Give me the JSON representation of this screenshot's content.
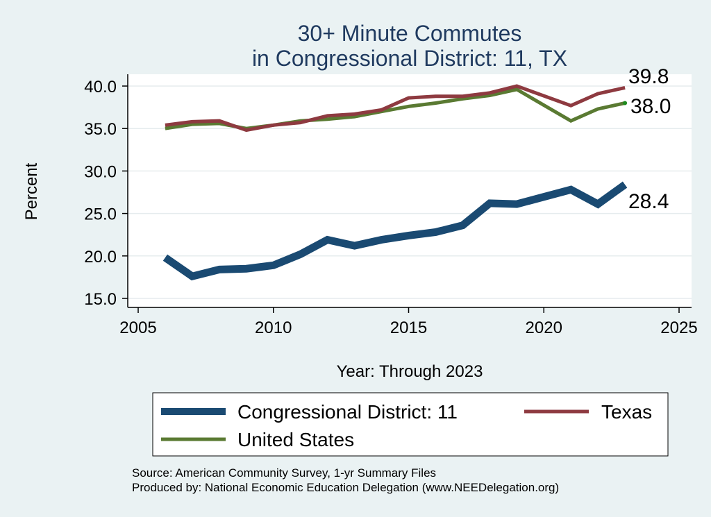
{
  "chart_data": {
    "type": "line",
    "title": [
      "30+ Minute Commutes",
      "in Congressional District:  11, TX"
    ],
    "xlabel": "Year: Through 2023",
    "ylabel": "Percent",
    "xlim": [
      2005,
      2025
    ],
    "ylim": [
      15,
      40
    ],
    "xticks": [
      "2005",
      "2010",
      "2015",
      "2020",
      "2025"
    ],
    "yticks": [
      "15.0",
      "20.0",
      "25.0",
      "30.0",
      "35.0",
      "40.0"
    ],
    "x": [
      2006,
      2007,
      2008,
      2009,
      2010,
      2011,
      2012,
      2013,
      2014,
      2015,
      2016,
      2017,
      2018,
      2019,
      2021,
      2022,
      2023
    ],
    "series": [
      {
        "name": "Congressional District:  11",
        "color": "#1a4a72",
        "values": [
          19.8,
          17.6,
          18.4,
          18.5,
          18.9,
          20.2,
          21.9,
          21.2,
          21.9,
          22.4,
          22.8,
          23.6,
          26.2,
          26.1,
          27.8,
          26.1,
          28.4
        ],
        "end_label": "28.4"
      },
      {
        "name": "Texas",
        "color": "#8e3a40",
        "values": [
          35.4,
          35.8,
          35.9,
          34.8,
          35.4,
          35.7,
          36.5,
          36.7,
          37.2,
          38.6,
          38.8,
          38.8,
          39.2,
          40.0,
          37.7,
          39.1,
          39.8
        ],
        "end_label": "39.8"
      },
      {
        "name": "United States",
        "color": "#5a7a32",
        "values": [
          35.0,
          35.5,
          35.6,
          35.0,
          35.4,
          35.9,
          36.1,
          36.4,
          37.0,
          37.6,
          38.0,
          38.5,
          38.9,
          39.6,
          35.9,
          37.3,
          38.0
        ],
        "end_label": "38.0"
      }
    ],
    "legend": [
      "Congressional District:  11",
      "Texas",
      "United States"
    ]
  },
  "footer": {
    "source": "Source: American Community Survey, 1-yr Summary Files",
    "produced_by": "Produced by: National Economic Education Delegation (www.NEEDelegation.org)"
  }
}
